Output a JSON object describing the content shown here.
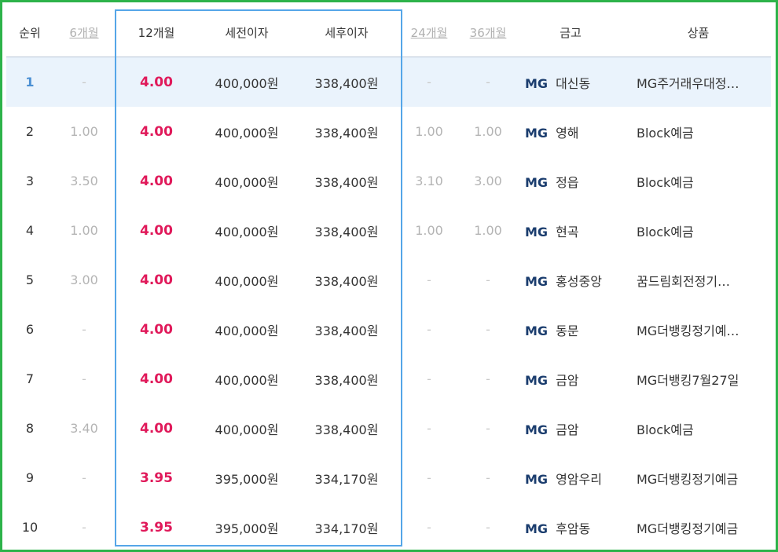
{
  "columns": {
    "rank": "순위",
    "m6": "6개월",
    "m12": "12개월",
    "pre_tax": "세전이자",
    "post_tax": "세후이자",
    "m24": "24개월",
    "m36": "36개월",
    "bank": "금고",
    "product": "상품"
  },
  "bank_logo_text": "MG",
  "colors": {
    "frame_border": "#2db34a",
    "highlight_border": "#55a6e8",
    "rate_accent": "#e0195a",
    "first_row_bg": "#eaf3fc",
    "logo": "#1b3d6e"
  },
  "rows": [
    {
      "rank": "1",
      "m6": "-",
      "m12": "4.00",
      "pre_tax": "400,000원",
      "post_tax": "338,400원",
      "m24": "-",
      "m36": "-",
      "bank": "대신동",
      "product": "MG주거래우대정…"
    },
    {
      "rank": "2",
      "m6": "1.00",
      "m12": "4.00",
      "pre_tax": "400,000원",
      "post_tax": "338,400원",
      "m24": "1.00",
      "m36": "1.00",
      "bank": "영해",
      "product": "Block예금"
    },
    {
      "rank": "3",
      "m6": "3.50",
      "m12": "4.00",
      "pre_tax": "400,000원",
      "post_tax": "338,400원",
      "m24": "3.10",
      "m36": "3.00",
      "bank": "정읍",
      "product": "Block예금"
    },
    {
      "rank": "4",
      "m6": "1.00",
      "m12": "4.00",
      "pre_tax": "400,000원",
      "post_tax": "338,400원",
      "m24": "1.00",
      "m36": "1.00",
      "bank": "현곡",
      "product": "Block예금"
    },
    {
      "rank": "5",
      "m6": "3.00",
      "m12": "4.00",
      "pre_tax": "400,000원",
      "post_tax": "338,400원",
      "m24": "-",
      "m36": "-",
      "bank": "홍성중앙",
      "product": "꿈드림회전정기…"
    },
    {
      "rank": "6",
      "m6": "-",
      "m12": "4.00",
      "pre_tax": "400,000원",
      "post_tax": "338,400원",
      "m24": "-",
      "m36": "-",
      "bank": "동문",
      "product": "MG더뱅킹정기예…"
    },
    {
      "rank": "7",
      "m6": "-",
      "m12": "4.00",
      "pre_tax": "400,000원",
      "post_tax": "338,400원",
      "m24": "-",
      "m36": "-",
      "bank": "금암",
      "product": "MG더뱅킹7월27일"
    },
    {
      "rank": "8",
      "m6": "3.40",
      "m12": "4.00",
      "pre_tax": "400,000원",
      "post_tax": "338,400원",
      "m24": "-",
      "m36": "-",
      "bank": "금암",
      "product": "Block예금"
    },
    {
      "rank": "9",
      "m6": "-",
      "m12": "3.95",
      "pre_tax": "395,000원",
      "post_tax": "334,170원",
      "m24": "-",
      "m36": "-",
      "bank": "영암우리",
      "product": "MG더뱅킹정기예금"
    },
    {
      "rank": "10",
      "m6": "-",
      "m12": "3.95",
      "pre_tax": "395,000원",
      "post_tax": "334,170원",
      "m24": "-",
      "m36": "-",
      "bank": "후암동",
      "product": "MG더뱅킹정기예금"
    }
  ]
}
